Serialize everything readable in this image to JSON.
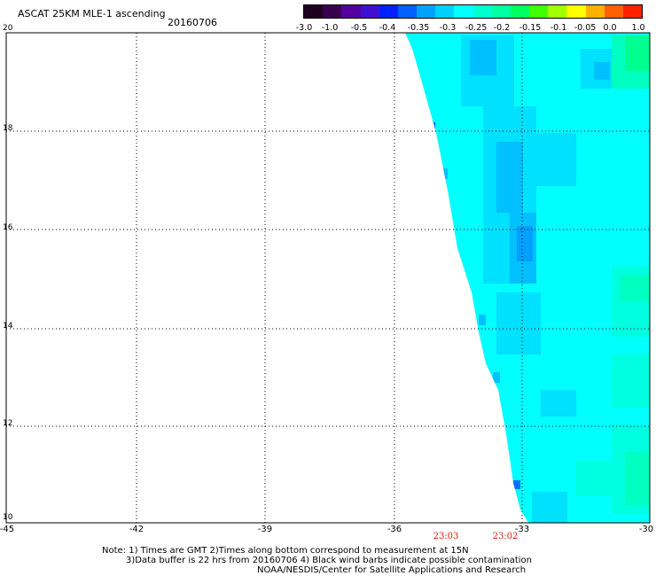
{
  "header": {
    "title": "ASCAT 25KM MLE-1 ascending",
    "date": "20160706"
  },
  "colorbar": {
    "colors": [
      "#200020",
      "#3a0050",
      "#5400a0",
      "#4010d0",
      "#0020ff",
      "#0060ff",
      "#00a0ff",
      "#00d0ff",
      "#00ffff",
      "#00ffd0",
      "#00ffa0",
      "#00ff60",
      "#40ff00",
      "#a0ff00",
      "#ffff00",
      "#ffb000",
      "#ff6000",
      "#ff2000"
    ],
    "tick_labels": [
      "-3.0",
      "-1.0",
      "-0.5",
      "-0.4",
      "-0.35",
      "-0.3",
      "-0.25",
      "-0.2",
      "-0.15",
      "-0.1",
      "-0.05",
      "0.0",
      "1.0"
    ]
  },
  "map": {
    "lon_range": [
      -45,
      -30
    ],
    "lat_range": [
      10,
      20
    ],
    "lon_labels": [
      "-45",
      "-42",
      "-39",
      "-36",
      "-33",
      "-30"
    ],
    "lat_labels": [
      "20",
      "18",
      "16",
      "14",
      "12",
      "10"
    ],
    "grid_color": "#000000",
    "swath_colors": {
      "base": "#00ffff",
      "light_blue": "#00e0ff",
      "mid_blue": "#00c0ff",
      "deep_blue": "#00a0ff",
      "aqua": "#00ffe0",
      "teal_green": "#00ffc0",
      "green": "#00ff90",
      "dark_blue": "#0070ff"
    },
    "time_labels": [
      "23:03",
      "23:02"
    ]
  },
  "footer": {
    "line1": "Note: 1) Times are GMT 2)Times along bottom correspond to measurement at 15N",
    "line2": "3)Data buffer is 22 hrs from 20160706 4) Black wind barbs indicate possible contamination",
    "line3": "NOAA/NESDIS/Center for Satellite Applications and Research"
  }
}
